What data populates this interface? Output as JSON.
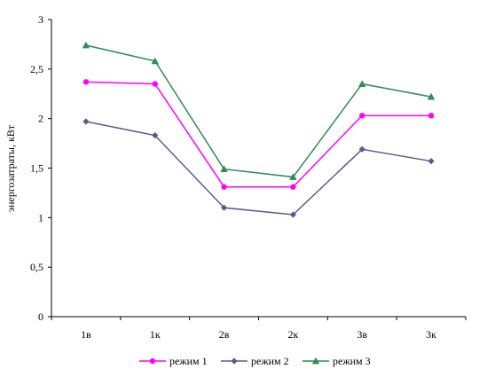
{
  "chart_data": {
    "type": "line",
    "categories": [
      "1в",
      "1к",
      "2в",
      "2к",
      "3в",
      "3к"
    ],
    "ylabel": "энергозатраты, кВт",
    "xlabel": "",
    "ylim": [
      0,
      3
    ],
    "yticks": [
      0,
      0.5,
      1,
      1.5,
      2,
      2.5,
      3
    ],
    "ytick_labels": [
      "0",
      "0,5",
      "1",
      "1,5",
      "2",
      "2,5",
      "3"
    ],
    "grid": false,
    "legend_position": "bottom",
    "series": [
      {
        "name": "режим 1",
        "color": "#ff00ff",
        "marker": "circle",
        "values": [
          2.37,
          2.35,
          1.31,
          1.31,
          2.03,
          2.03
        ]
      },
      {
        "name": "режим 2",
        "color": "#5a5a8e",
        "marker": "diamond",
        "values": [
          1.97,
          1.83,
          1.1,
          1.03,
          1.69,
          1.57
        ]
      },
      {
        "name": "режим 3",
        "color": "#2e8b57",
        "marker": "triangle",
        "values": [
          2.74,
          2.58,
          1.49,
          1.41,
          2.35,
          2.22
        ]
      }
    ]
  }
}
